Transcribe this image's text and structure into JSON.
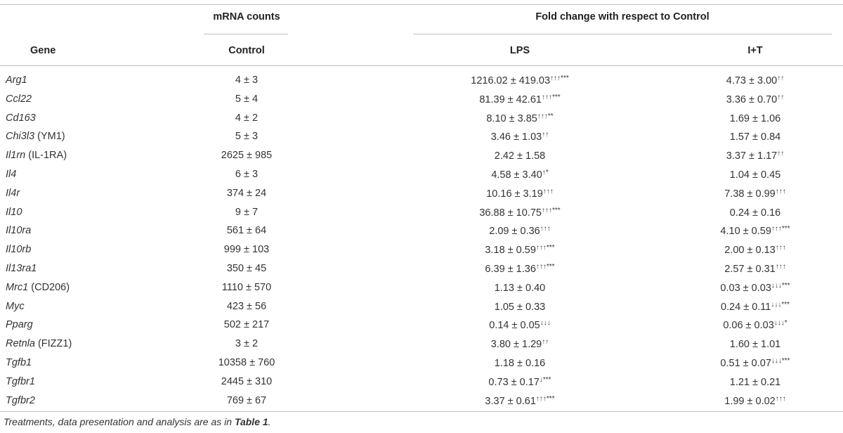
{
  "table": {
    "group_headers": {
      "mrna": "mRNA counts",
      "fold": "Fold change with respect to Control"
    },
    "columns": {
      "gene": "Gene",
      "control": "Control",
      "lps": "LPS",
      "it": "I+T"
    },
    "rows": [
      {
        "sym": "Arg1",
        "alias": "",
        "ctrl": "4 ± 3",
        "lps": "1216.02 ± 419.03",
        "lps_sup": "↑↑↑***",
        "it": "4.73 ± 3.00",
        "it_sup": "↑↑"
      },
      {
        "sym": "Ccl22",
        "alias": "",
        "ctrl": "5 ± 4",
        "lps": "81.39 ± 42.61",
        "lps_sup": "↑↑↑***",
        "it": "3.36 ± 0.70",
        "it_sup": "↑↑"
      },
      {
        "sym": "Cd163",
        "alias": "",
        "ctrl": "4 ± 2",
        "lps": "8.10 ± 3.85",
        "lps_sup": "↑↑↑**",
        "it": "1.69 ± 1.06",
        "it_sup": ""
      },
      {
        "sym": "Chi3l3",
        "alias": " (YM1)",
        "ctrl": "5 ± 3",
        "lps": "3.46 ± 1.03",
        "lps_sup": "↑↑",
        "it": "1.57 ± 0.84",
        "it_sup": ""
      },
      {
        "sym": "Il1rn",
        "alias": " (IL-1RA)",
        "ctrl": "2625 ± 985",
        "lps": "2.42 ± 1.58",
        "lps_sup": "",
        "it": "3.37 ± 1.17",
        "it_sup": "↑↑"
      },
      {
        "sym": "Il4",
        "alias": "",
        "ctrl": "6 ± 3",
        "lps": "4.58 ± 3.40",
        "lps_sup": "↑*",
        "it": "1.04 ± 0.45",
        "it_sup": ""
      },
      {
        "sym": "Il4r",
        "alias": "",
        "ctrl": "374 ± 24",
        "lps": "10.16 ± 3.19",
        "lps_sup": "↑↑↑",
        "it": "7.38 ± 0.99",
        "it_sup": "↑↑↑"
      },
      {
        "sym": "Il10",
        "alias": "",
        "ctrl": "9 ± 7",
        "lps": "36.88 ± 10.75",
        "lps_sup": "↑↑↑***",
        "it": "0.24 ± 0.16",
        "it_sup": ""
      },
      {
        "sym": "Il10ra",
        "alias": "",
        "ctrl": "561 ± 64",
        "lps": "2.09 ± 0.36",
        "lps_sup": "↑↑↑",
        "it": "4.10 ± 0.59",
        "it_sup": "↑↑↑***"
      },
      {
        "sym": "Il10rb",
        "alias": "",
        "ctrl": "999 ± 103",
        "lps": "3.18 ± 0.59",
        "lps_sup": "↑↑↑***",
        "it": "2.00 ± 0.13",
        "it_sup": "↑↑↑"
      },
      {
        "sym": "Il13ra1",
        "alias": "",
        "ctrl": "350 ± 45",
        "lps": "6.39 ± 1.36",
        "lps_sup": "↑↑↑***",
        "it": "2.57 ± 0.31",
        "it_sup": "↑↑↑"
      },
      {
        "sym": "Mrc1",
        "alias": " (CD206)",
        "ctrl": "1110 ± 570",
        "lps": "1.13 ± 0.40",
        "lps_sup": "",
        "it": "0.03 ± 0.03",
        "it_sup": "↓↓↓***"
      },
      {
        "sym": "Myc",
        "alias": "",
        "ctrl": "423 ± 56",
        "lps": "1.05 ± 0.33",
        "lps_sup": "",
        "it": "0.24 ± 0.11",
        "it_sup": "↓↓↓***"
      },
      {
        "sym": "Pparg",
        "alias": "",
        "ctrl": "502 ± 217",
        "lps": "0.14 ± 0.05",
        "lps_sup": "↓↓↓",
        "it": "0.06 ± 0.03",
        "it_sup": "↓↓↓*"
      },
      {
        "sym": "Retnla",
        "alias": " (FIZZ1)",
        "ctrl": "3 ± 2",
        "lps": "3.80 ± 1.29",
        "lps_sup": "↑↑",
        "it": "1.60 ± 1.01",
        "it_sup": ""
      },
      {
        "sym": "Tgfb1",
        "alias": "",
        "ctrl": "10358 ± 760",
        "lps": "1.18 ± 0.16",
        "lps_sup": "",
        "it": "0.51 ± 0.07",
        "it_sup": "↓↓↓***"
      },
      {
        "sym": "Tgfbr1",
        "alias": "",
        "ctrl": "2445 ± 310",
        "lps": "0.73 ± 0.17",
        "lps_sup": "↓***",
        "it": "1.21 ± 0.21",
        "it_sup": ""
      },
      {
        "sym": "Tgfbr2",
        "alias": "",
        "ctrl": "769 ± 67",
        "lps": "3.37 ± 0.61",
        "lps_sup": "↑↑↑***",
        "it": "1.99 ± 0.02",
        "it_sup": "↑↑↑"
      }
    ]
  },
  "footnote": {
    "text": "Treatments, data presentation and analysis are as in ",
    "ref": "Table 1",
    "end": "."
  }
}
